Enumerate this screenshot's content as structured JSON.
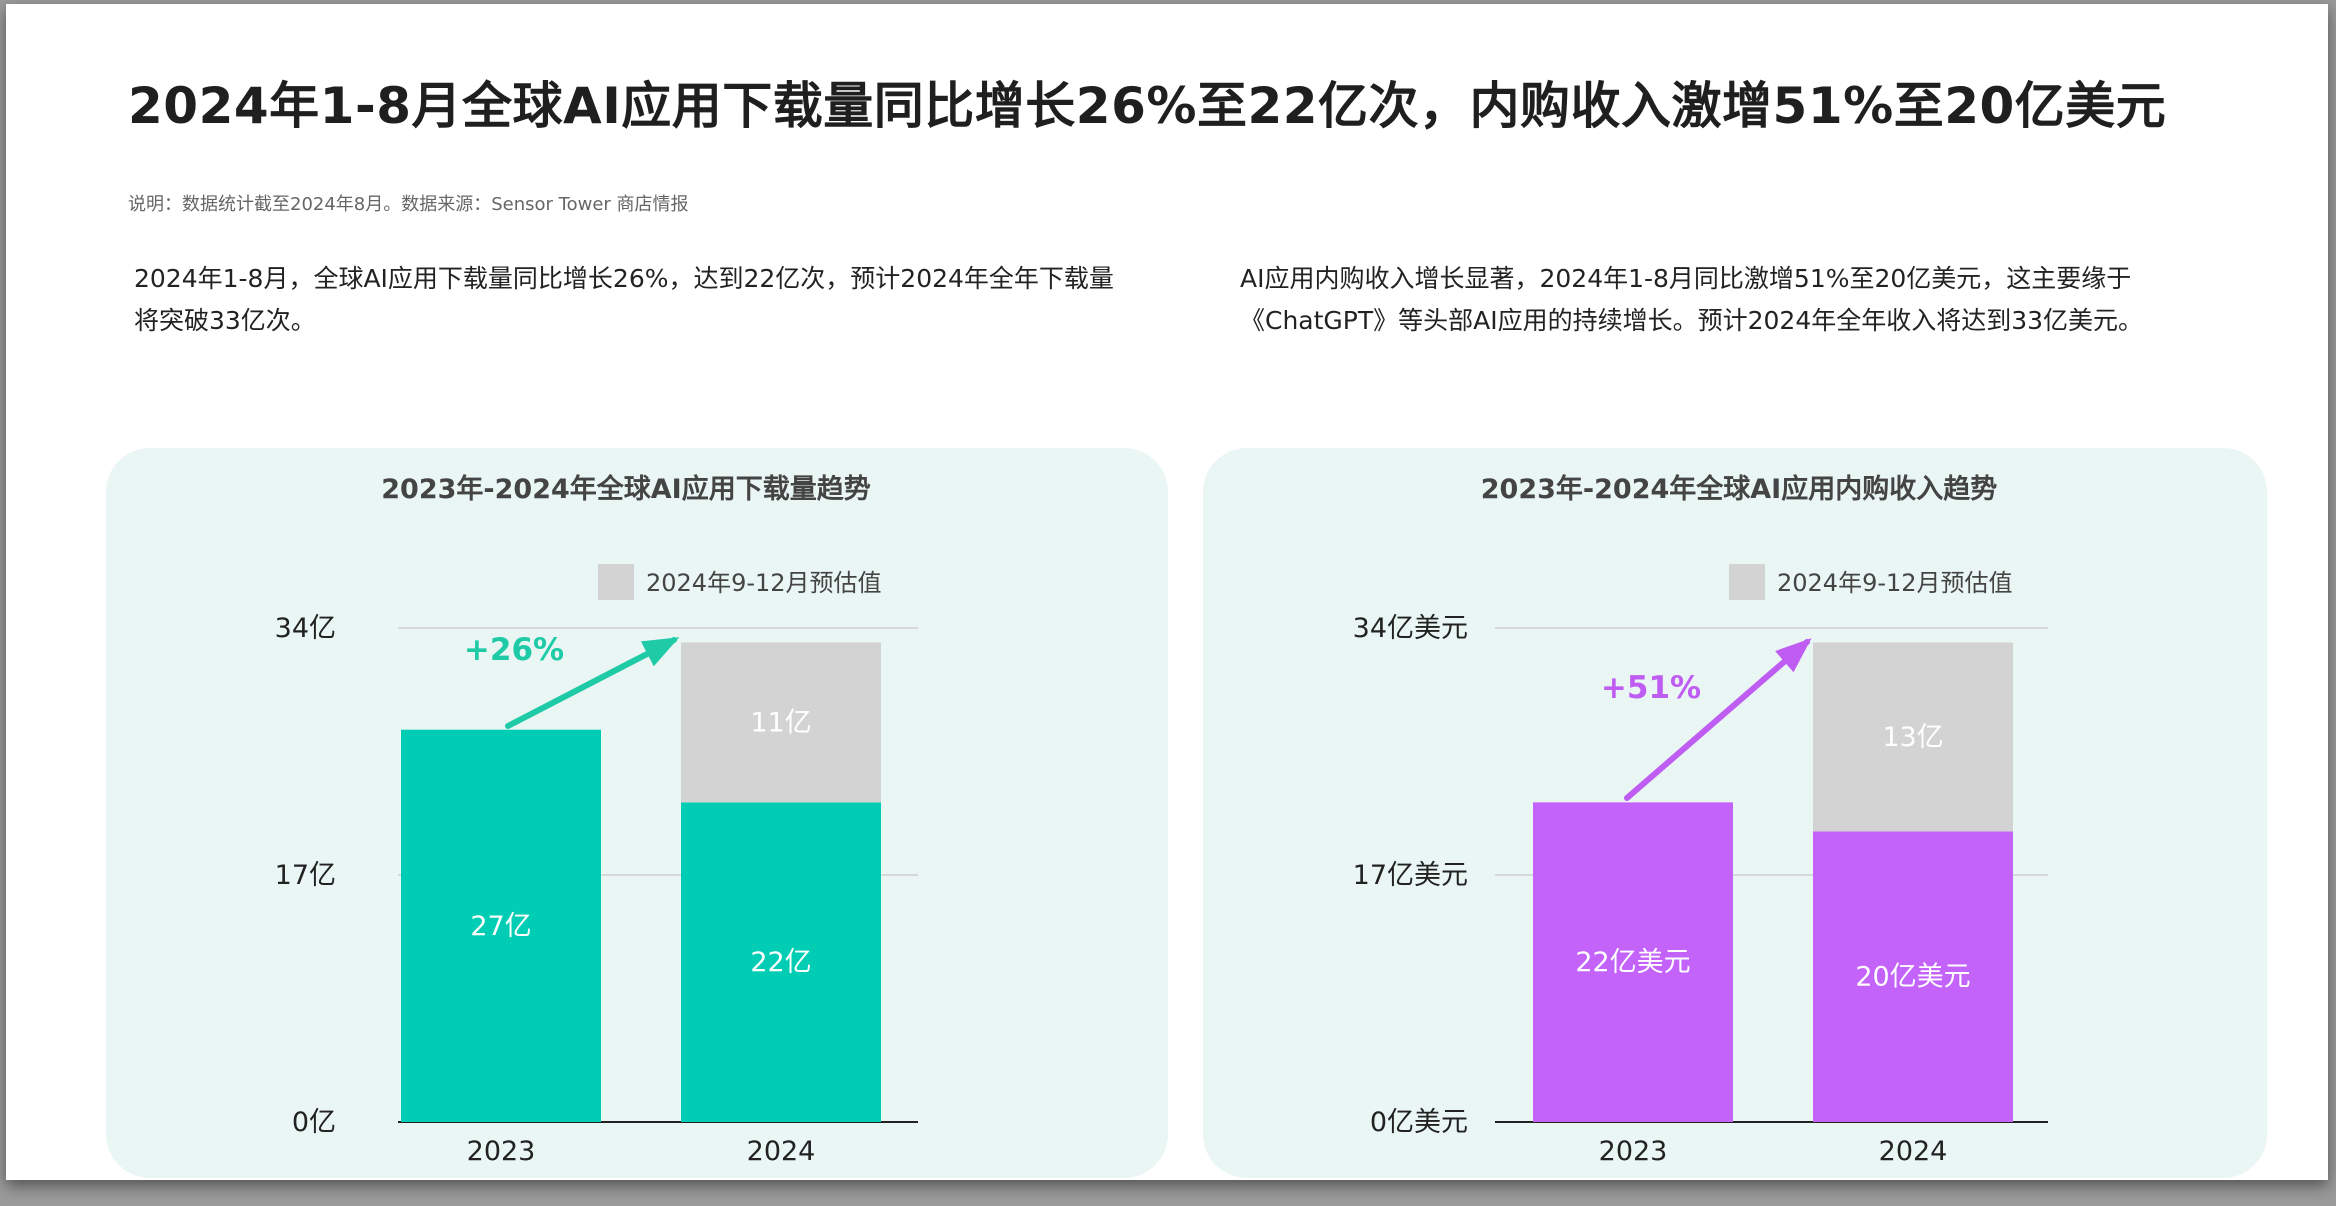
{
  "title": "2024年1-8月全球AI应用下载量同比增长26%至22亿次，内购收入激增51%至20亿美元",
  "note": "说明：数据统计截至2024年8月。数据来源：Sensor Tower 商店情报",
  "desc_left": "2024年1-8月，全球AI应用下载量同比增长26%，达到22亿次，预计2024年全年下载量将突破33亿次。",
  "desc_right": "AI应用内购收入增长显著，2024年1-8月同比激增51%至20亿美元，这主要缘于《ChatGPT》等头部AI应用的持续增长。预计2024年全年收入将达到33亿美元。",
  "colors": {
    "downloads": "#00cdb3",
    "revenue": "#c463fa",
    "estimate": "#d3d3d3",
    "panel_bg": "#e9f6f4",
    "growth_left": "#1fcaa6",
    "growth_right": "#bf5cf2"
  },
  "chart_data": [
    {
      "type": "bar",
      "stacked": true,
      "title": "2023年-2024年全球AI应用下载量趋势",
      "categories": [
        "2023",
        "2024"
      ],
      "series": [
        {
          "values": [
            27,
            22
          ],
          "labels": [
            "27亿",
            "22亿"
          ],
          "color": "#00cdb3"
        },
        {
          "name": "2024年9-12月预估值",
          "values": [
            0,
            11
          ],
          "labels": [
            "",
            "11亿"
          ],
          "color": "#d3d3d3"
        }
      ],
      "yticks": [
        0,
        17,
        34
      ],
      "ytick_labels": [
        "0亿",
        "17亿",
        "34亿"
      ],
      "ylim": [
        0,
        34
      ],
      "grid": true,
      "legend": "top-right",
      "legend_label": "2024年9-12月预估值",
      "annotation": "+26%"
    },
    {
      "type": "bar",
      "stacked": true,
      "title": "2023年-2024年全球AI应用内购收入趋势",
      "categories": [
        "2023",
        "2024"
      ],
      "series": [
        {
          "values": [
            22,
            20
          ],
          "labels": [
            "22亿美元",
            "20亿美元"
          ],
          "color": "#c463fa"
        },
        {
          "name": "2024年9-12月预估值",
          "values": [
            0,
            13
          ],
          "labels": [
            "",
            "13亿"
          ],
          "color": "#d3d3d3"
        }
      ],
      "yticks": [
        0,
        17,
        34
      ],
      "ytick_labels": [
        "0亿美元",
        "17亿美元",
        "34亿美元"
      ],
      "ylim": [
        0,
        34
      ],
      "grid": true,
      "legend": "top-right",
      "legend_label": "2024年9-12月预估值",
      "annotation": "+51%"
    }
  ]
}
